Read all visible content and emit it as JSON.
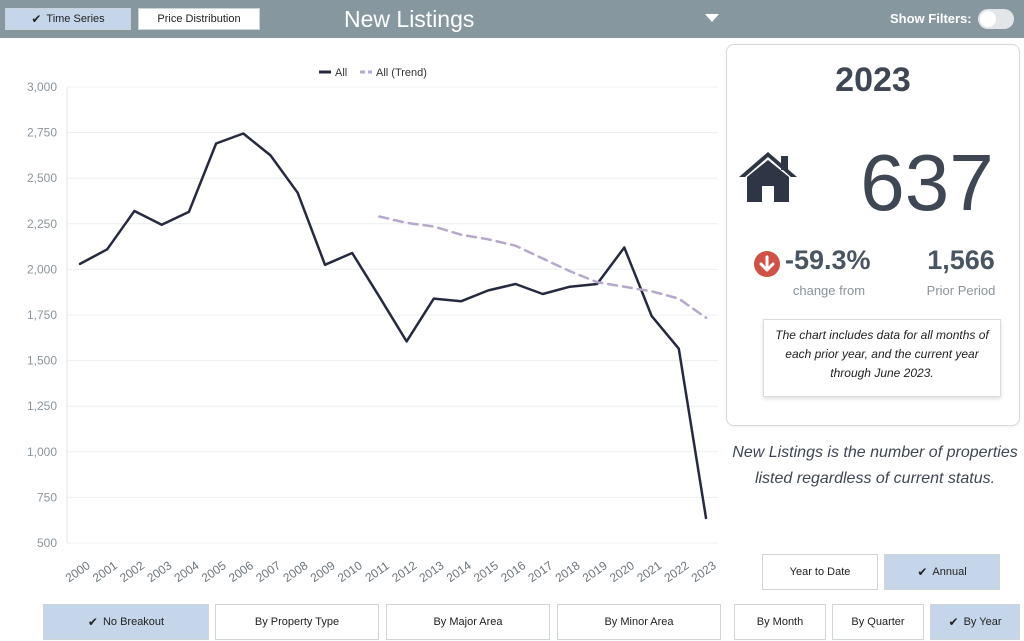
{
  "header": {
    "tabs": [
      {
        "label": "Time Series",
        "active": true
      },
      {
        "label": "Price Distribution",
        "active": false
      }
    ],
    "title": "New Listings",
    "show_filters_label": "Show Filters:",
    "show_filters_on": false
  },
  "summary": {
    "year": "2023",
    "value": "637",
    "change_pct": "-59.3%",
    "change_label": "change from",
    "prior_value": "1,566",
    "prior_label": "Prior Period",
    "note": "The chart includes data for all months of each prior year, and the current year through June 2023.",
    "description": "New Listings is the number of properties listed regardless of current status."
  },
  "period_buttons": [
    {
      "label": "Year to Date",
      "active": false
    },
    {
      "label": "Annual",
      "active": true
    }
  ],
  "breakout_buttons": [
    {
      "label": "No Breakout",
      "active": true
    },
    {
      "label": "By Property Type",
      "active": false
    },
    {
      "label": "By Major Area",
      "active": false
    },
    {
      "label": "By Minor Area",
      "active": false
    }
  ],
  "granularity_buttons": [
    {
      "label": "By Month",
      "active": false
    },
    {
      "label": "By Quarter",
      "active": false
    },
    {
      "label": "By Year",
      "active": true
    }
  ],
  "colors": {
    "header_bg": "#86979f",
    "active_button": "#c5d6ea",
    "series_all": "#262a40",
    "series_trend": "#b6a8cc",
    "down_arrow": "#d05247"
  },
  "chart_data": {
    "type": "line",
    "x": [
      "2000",
      "2001",
      "2002",
      "2003",
      "2004",
      "2005",
      "2006",
      "2007",
      "2008",
      "2009",
      "2010",
      "2011",
      "2012",
      "2013",
      "2014",
      "2015",
      "2016",
      "2017",
      "2018",
      "2019",
      "2020",
      "2021",
      "2022",
      "2023"
    ],
    "series": [
      {
        "name": "All",
        "style": "solid",
        "values": [
          2030,
          2110,
          2320,
          2245,
          2315,
          2690,
          2745,
          2625,
          2420,
          2025,
          2090,
          1850,
          1605,
          1840,
          1825,
          1885,
          1920,
          1865,
          1905,
          1920,
          2120,
          1745,
          1565,
          637
        ]
      },
      {
        "name": "All (Trend)",
        "style": "dashed",
        "values": [
          null,
          null,
          null,
          null,
          null,
          null,
          null,
          null,
          null,
          null,
          null,
          2290,
          2255,
          2235,
          2190,
          2165,
          2130,
          2060,
          1990,
          1930,
          1905,
          1880,
          1840,
          1735
        ]
      }
    ],
    "ylim": [
      500,
      3000
    ],
    "yticks": [
      500,
      750,
      1000,
      1250,
      1500,
      1750,
      2000,
      2250,
      2500,
      2750,
      3000
    ],
    "grid": true,
    "legend_position": "top-center"
  }
}
